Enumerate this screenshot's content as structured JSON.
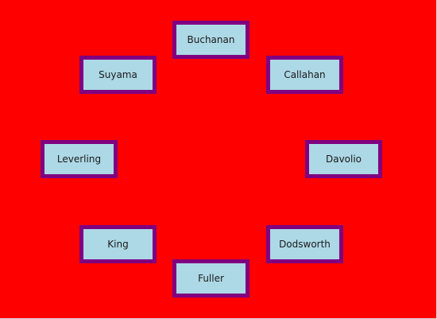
{
  "colors": {
    "background": "#ff0000",
    "item_fill": "#add8e6",
    "item_border": "#800080"
  },
  "items": [
    {
      "label": "Buchanan"
    },
    {
      "label": "Callahan"
    },
    {
      "label": "Davolio"
    },
    {
      "label": "Dodsworth"
    },
    {
      "label": "Fuller"
    },
    {
      "label": "King"
    },
    {
      "label": "Leverling"
    },
    {
      "label": "Suyama"
    }
  ]
}
